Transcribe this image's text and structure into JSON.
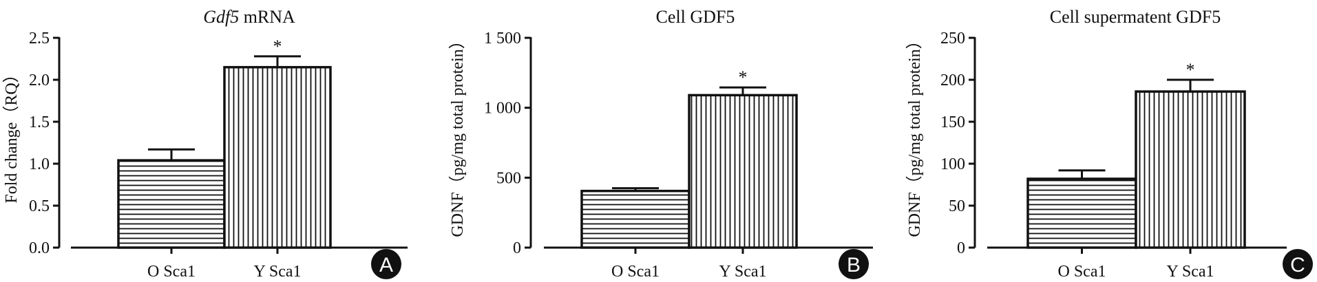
{
  "chart_data": [
    {
      "type": "bar",
      "panel": "A",
      "title_italic": "Gdf5",
      "title_rest": " mRNA",
      "ylabel": "Fold change（RQ）",
      "ylim": [
        0,
        2.5
      ],
      "yticks": [
        "0.0",
        "0.5",
        "1.0",
        "1.5",
        "2.0",
        "2.5"
      ],
      "ytick_values": [
        0,
        0.5,
        1.0,
        1.5,
        2.0,
        2.5
      ],
      "categories": [
        "O Sca1",
        "Y Sca1"
      ],
      "values": [
        1.04,
        2.15
      ],
      "errors": [
        0.13,
        0.13
      ],
      "significance": [
        "",
        "*"
      ],
      "patterns": [
        "horizontal-lines",
        "vertical-lines"
      ]
    },
    {
      "type": "bar",
      "panel": "B",
      "title": "Cell GDF5",
      "ylabel": "GDNF（pg/mg total protein）",
      "ylim": [
        0,
        1500
      ],
      "yticks": [
        "0",
        "500",
        "1 000",
        "1 500"
      ],
      "ytick_values": [
        0,
        500,
        1000,
        1500
      ],
      "categories": [
        "O Sca1",
        "Y Sca1"
      ],
      "values": [
        405,
        1090
      ],
      "errors": [
        20,
        55
      ],
      "significance": [
        "",
        "*"
      ],
      "patterns": [
        "horizontal-lines",
        "vertical-lines"
      ]
    },
    {
      "type": "bar",
      "panel": "C",
      "title": "Cell supermatent GDF5",
      "ylabel": "GDNF（pg/mg total protein）",
      "ylim": [
        0,
        250
      ],
      "yticks": [
        "0",
        "50",
        "100",
        "150",
        "200",
        "250"
      ],
      "ytick_values": [
        0,
        50,
        100,
        150,
        200,
        250
      ],
      "categories": [
        "O Sca1",
        "Y Sca1"
      ],
      "values": [
        82,
        186
      ],
      "errors": [
        10,
        14
      ],
      "significance": [
        "",
        "*"
      ],
      "patterns": [
        "horizontal-lines",
        "vertical-lines"
      ]
    }
  ]
}
